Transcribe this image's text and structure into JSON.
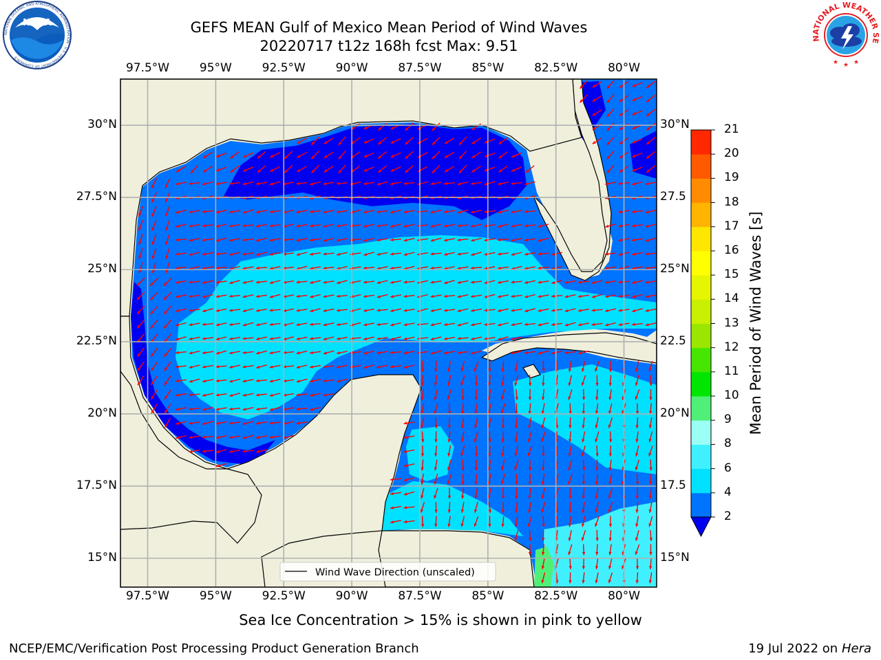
{
  "header": {
    "title_line1": "GEFS MEAN Gulf of Mexico Mean Period of Wind Waves",
    "title_line2": "20220717 t12z 168h fcst   Max: 9.51"
  },
  "logos": {
    "noaa_text": "NOAA",
    "noaa_ring_text": "NATIONAL OCEANIC AND ATMOSPHERIC ADMINISTRATION · U.S. DEPARTMENT OF COMMERCE",
    "nws_ring_text": "NATIONAL WEATHER SERVICE"
  },
  "map": {
    "lon_range": [
      -98.5,
      -78.8
    ],
    "lat_range": [
      14.0,
      31.6
    ],
    "lon_ticks": [
      "97.5°W",
      "95°W",
      "92.5°W",
      "90°W",
      "87.5°W",
      "85°W",
      "82.5°W",
      "80°W"
    ],
    "lon_tick_values": [
      -97.5,
      -95,
      -92.5,
      -90,
      -87.5,
      -85,
      -82.5,
      -80
    ],
    "lat_ticks_left": [
      "30°N",
      "27.5°N",
      "25°N",
      "22.5°N",
      "20°N",
      "17.5°N",
      "15°N"
    ],
    "lat_ticks_right": [
      "30°N",
      "27.5",
      "25°N",
      "22.5",
      "20°N",
      "17.5",
      "15°N"
    ],
    "lat_tick_values": [
      30,
      27.5,
      25,
      22.5,
      20,
      17.5,
      15
    ],
    "land_color": "#efefdc",
    "arrow_color": "#ff0000",
    "legend_label": "Wind Wave Direction (unscaled)"
  },
  "colorbar": {
    "label": "Mean Period of Wind Waves [s]",
    "ticks": [
      "2",
      "4",
      "6",
      "8",
      "9",
      "10",
      "11",
      "12",
      "13",
      "14",
      "15",
      "16",
      "17",
      "18",
      "19",
      "20",
      "21"
    ],
    "colors": [
      "#0073ff",
      "#00e1ff",
      "#40f0ff",
      "#9cfff6",
      "#50f078",
      "#00e600",
      "#46e600",
      "#9be600",
      "#c8f000",
      "#e6f500",
      "#ffff00",
      "#ffe600",
      "#ffb400",
      "#ff8c00",
      "#ff5a00",
      "#ff2800",
      "#ff0000"
    ],
    "under_color": "#0000f0"
  },
  "footer": {
    "ice_note": "Sea Ice Concentration > 15% is shown in pink to yellow",
    "credit": "NCEP/EMC/Verification Post Processing Product Generation Branch",
    "date_text": "19 Jul 2022 on ",
    "host": "Hera"
  }
}
